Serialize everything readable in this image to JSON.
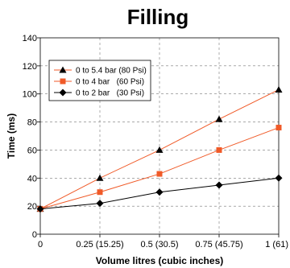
{
  "chart_data": {
    "type": "line",
    "title": "Filling",
    "xlabel": "Volume litres (cubic inches)",
    "ylabel": "Time (ms)",
    "x": [
      0,
      0.25,
      0.5,
      0.75,
      1
    ],
    "x_tick_labels": [
      "0",
      "0.25 (15.25)",
      "0.5 (30.5)",
      "0.75 (45.75)",
      "1 (61)"
    ],
    "y_ticks": [
      0,
      20,
      40,
      60,
      80,
      100,
      120,
      140
    ],
    "ylim": [
      0,
      140
    ],
    "xlim": [
      0,
      1
    ],
    "grid": "horizontal and vertical dashed",
    "legend_position": "top-left",
    "series": [
      {
        "name": "0 to 5.4 bar (80 Psi)",
        "values": [
          18,
          40,
          60,
          82,
          103
        ],
        "line_color": "#f05a28",
        "marker": "triangle",
        "marker_color": "#000000"
      },
      {
        "name": "0 to 4 bar   (60 Psi)",
        "values": [
          18,
          30,
          43,
          60,
          76
        ],
        "line_color": "#f05a28",
        "marker": "square",
        "marker_color": "#f05a28"
      },
      {
        "name": "0 to 2 bar   (30 Psi)",
        "values": [
          18,
          22,
          30,
          35,
          40
        ],
        "line_color": "#000000",
        "marker": "diamond",
        "marker_color": "#000000"
      }
    ]
  }
}
